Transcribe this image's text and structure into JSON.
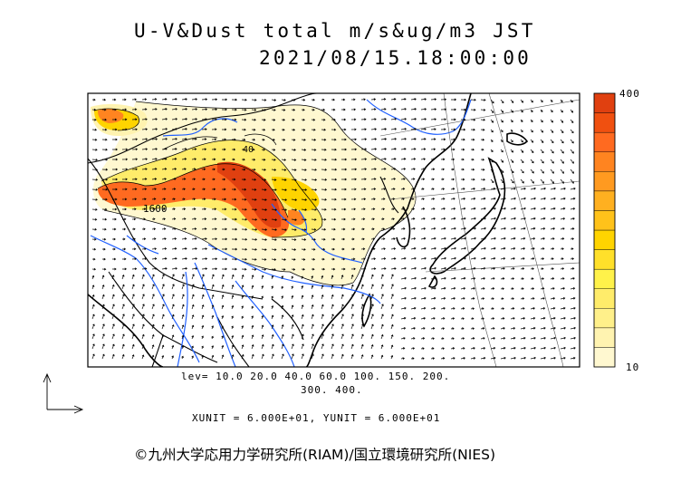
{
  "title": {
    "line1": "U-V&Dust total m/s&ug/m3 JST",
    "line2": "2021/08/15.18:00:00"
  },
  "colorbar": {
    "max_label": "400",
    "min_label": "10",
    "colors": [
      "#fff8d0",
      "#fff3b0",
      "#fff08a",
      "#ffec6a",
      "#fff24a",
      "#ffe02a",
      "#ffd400",
      "#ffc21a",
      "#ffb020",
      "#ff9a20",
      "#ff8420",
      "#ff6a20",
      "#f05010",
      "#e04010"
    ]
  },
  "contour_levels": {
    "line1": "lev= 10.0 20.0 40.0 60.0 100. 150. 200.",
    "line2": "300. 400."
  },
  "units": "XUNIT = 6.000E+01, YUNIT = 6.000E+01",
  "contour_label_text": "1600",
  "contour_label_text2": "40",
  "copyright": "©九州大学応用力学研究所(RIAM)/国立環境研究所(NIES)"
}
